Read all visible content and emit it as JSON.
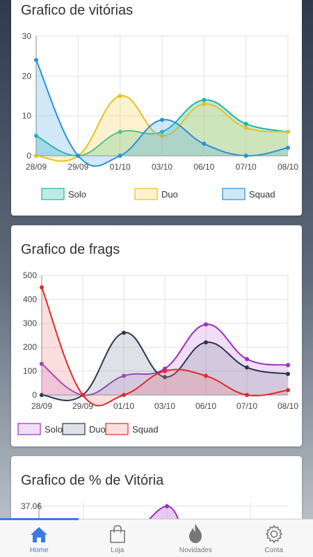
{
  "cards": {
    "victories": {
      "title": "Grafico de vitórias"
    },
    "frags": {
      "title": "Grafico de frags"
    },
    "winpct": {
      "title": "Grafico de % de Vitória"
    }
  },
  "chart_data": [
    {
      "type": "area",
      "title": "Grafico de vitórias",
      "categories": [
        "28/09",
        "29/09",
        "01/10",
        "03/10",
        "06/10",
        "07/10",
        "08/10"
      ],
      "ylim": [
        0,
        30
      ],
      "yticks": [
        0,
        10,
        20,
        30
      ],
      "grid": true,
      "legend": "bottom",
      "series": [
        {
          "name": "Solo",
          "values": [
            5,
            0,
            6,
            6,
            14,
            8,
            6
          ],
          "color": "#1ab8a0",
          "fill": "#1ab8a0"
        },
        {
          "name": "Duo",
          "values": [
            0,
            0,
            15,
            5,
            13,
            7,
            6
          ],
          "color": "#e8c020",
          "fill": "#f3d54e"
        },
        {
          "name": "Squad",
          "values": [
            24,
            0,
            0,
            9,
            3,
            0,
            2
          ],
          "color": "#2a90d8",
          "fill": "#5aaee8"
        }
      ]
    },
    {
      "type": "area",
      "title": "Grafico de frags",
      "categories": [
        "28/09",
        "29/09",
        "01/10",
        "03/10",
        "06/10",
        "07/10",
        "08/10"
      ],
      "ylim": [
        0,
        500
      ],
      "yticks": [
        0,
        100,
        200,
        300,
        400,
        500
      ],
      "grid": true,
      "legend": "bottom",
      "series": [
        {
          "name": "Solo",
          "values": [
            130,
            0,
            80,
            110,
            295,
            150,
            125
          ],
          "color": "#9b30b8",
          "fill": "#c985dd"
        },
        {
          "name": "Duo",
          "values": [
            0,
            0,
            260,
            75,
            220,
            115,
            88
          ],
          "color": "#2a3550",
          "fill": "#8a93a3"
        },
        {
          "name": "Squad",
          "values": [
            450,
            0,
            0,
            100,
            80,
            0,
            20
          ],
          "color": "#e02a2a",
          "fill": "#f08a8a"
        }
      ]
    },
    {
      "type": "area",
      "title": "Grafico de % de Vitória",
      "yticks_visible": [
        "37.06"
      ],
      "grid": true,
      "series": [
        {
          "values": [
            37.06
          ],
          "color": "#9b30b8",
          "fill": "#c985dd"
        }
      ]
    }
  ],
  "tabbar": {
    "items": [
      {
        "label": "Home",
        "icon": "home-icon",
        "active": true
      },
      {
        "label": "Loja",
        "icon": "bag-icon",
        "active": false
      },
      {
        "label": "Novidades",
        "icon": "flame-icon",
        "active": false
      },
      {
        "label": "Conta",
        "icon": "gear-icon",
        "active": false
      }
    ],
    "active_color": "#3a7be0"
  }
}
